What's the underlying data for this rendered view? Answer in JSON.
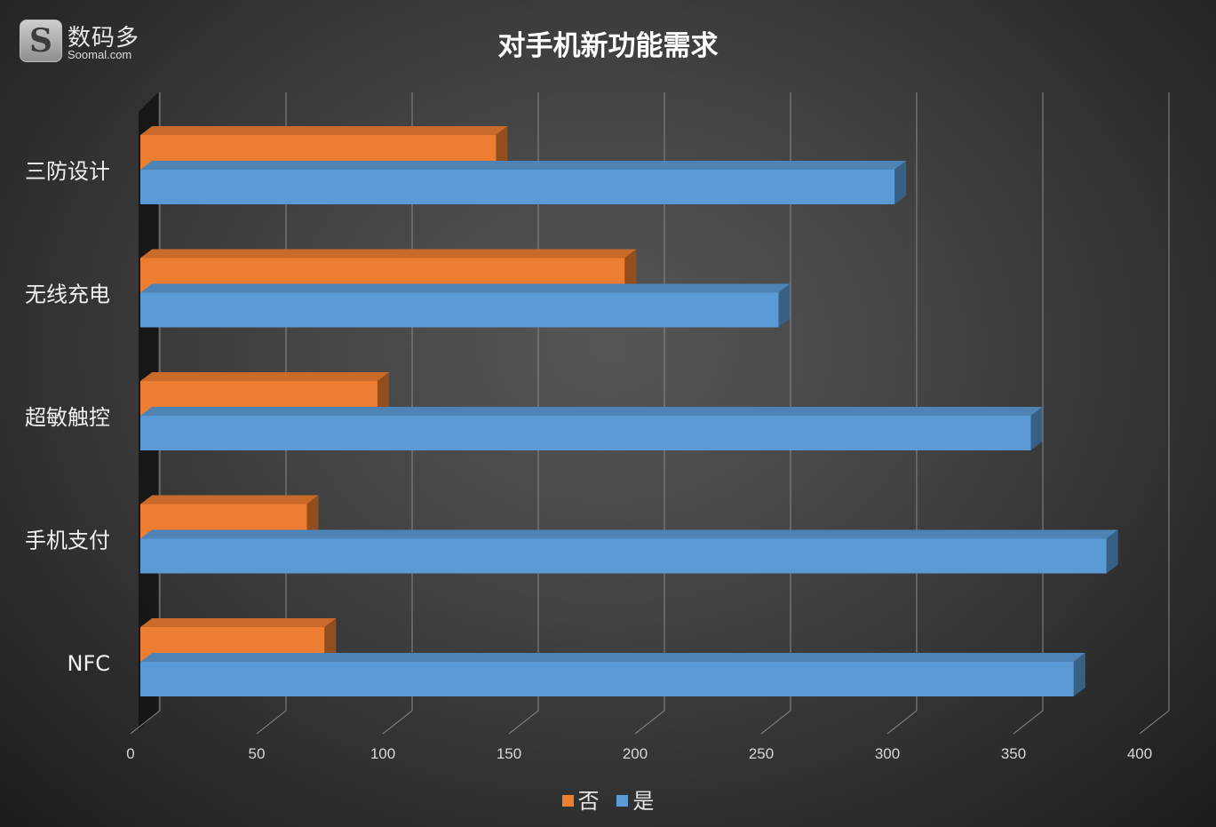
{
  "logo": {
    "glyph": "S",
    "brand": "数码多",
    "domain": "Soomal.com"
  },
  "chart_data": {
    "type": "bar",
    "orientation": "horizontal",
    "title": "对手机新功能需求",
    "categories": [
      "三防设计",
      "无线充电",
      "超敏触控",
      "手机支付",
      "NFC"
    ],
    "series": [
      {
        "name": "否",
        "color": "#ed7d31",
        "values": [
          141,
          192,
          94,
          66,
          73
        ]
      },
      {
        "name": "是",
        "color": "#5b9bd5",
        "values": [
          299,
          253,
          353,
          383,
          370
        ]
      }
    ],
    "xlim": [
      0,
      400
    ],
    "xticks": [
      "0",
      "50",
      "100",
      "150",
      "200",
      "250",
      "300",
      "350",
      "400"
    ],
    "grid": true,
    "legend_position": "bottom"
  }
}
